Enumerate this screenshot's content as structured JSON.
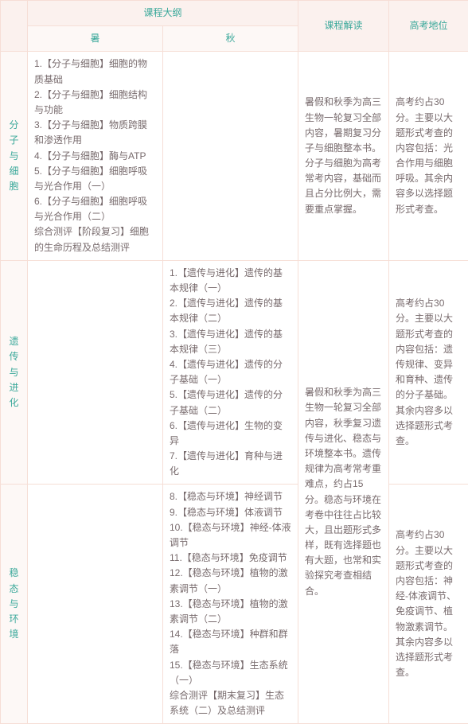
{
  "headers": {
    "outline": "课程大纲",
    "summer": "暑",
    "autumn": "秋",
    "interpretation": "课程解读",
    "exam_position": "高考地位"
  },
  "rows": [
    {
      "label": "分子与细胞",
      "summer": "1.【分子与细胞】细胞的物质基础\n2.【分子与细胞】细胞结构与功能\n3.【分子与细胞】物质跨膜和渗透作用\n4.【分子与细胞】酶与ATP\n5.【分子与细胞】细胞呼吸与光合作用（一）\n6.【分子与细胞】细胞呼吸与光合作用（二）\n综合测评【阶段复习】细胞的生命历程及总结测评",
      "autumn": "",
      "interpretation": "暑假和秋季为高三生物一轮复习全部内容，暑期复习分子与细胞整本书。分子与细胞为高考常考内容，基础而且占分比例大，需要重点掌握。",
      "exam": "高考约占30分。主要以大题形式考查的内容包括：光合作用与细胞呼吸。其余内容多以选择题形式考查。"
    },
    {
      "label": "遗传与进化",
      "summer": "",
      "autumn": "1.【遗传与进化】遗传的基本规律（一）\n2.【遗传与进化】遗传的基本规律（二）\n3.【遗传与进化】遗传的基本规律（三）\n4.【遗传与进化】遗传的分子基础（一）\n5.【遗传与进化】遗传的分子基础（二）\n6.【遗传与进化】生物的变异\n7.【遗传与进化】育种与进化",
      "interpretation_merged": "暑假和秋季为高三生物一轮复习全部内容，秋季复习遗传与进化、稳态与环境整本书。遗传规律为高考常考重难点，约占15分。稳态与环境在考卷中往往占比较大，且出题形式多样，既有选择题也有大题，也常和实验探究考查相结合。",
      "exam": "高考约占30分。主要以大题形式考查的内容包括：遗传规律、变异和育种、遗传的分子基础。其余内容多以选择题形式考查。"
    },
    {
      "label": "稳态与环境",
      "summer": "",
      "autumn": "8.【稳态与环境】神经调节\n9.【稳态与环境】体液调节\n10.【稳态与环境】神经-体液调节\n11.【稳态与环境】免疫调节\n12.【稳态与环境】植物的激素调节（一）\n13.【稳态与环境】植物的激素调节（二）\n14.【稳态与环境】种群和群落\n15.【稳态与环境】生态系统（一）\n综合测评【期末复习】生态系统（二）及总结测评",
      "exam": "高考约占30分。主要以大题形式考查的内容包括：神经-体液调节、免疫调节、植物激素调节。其余内容多以选择题形式考查。"
    }
  ]
}
